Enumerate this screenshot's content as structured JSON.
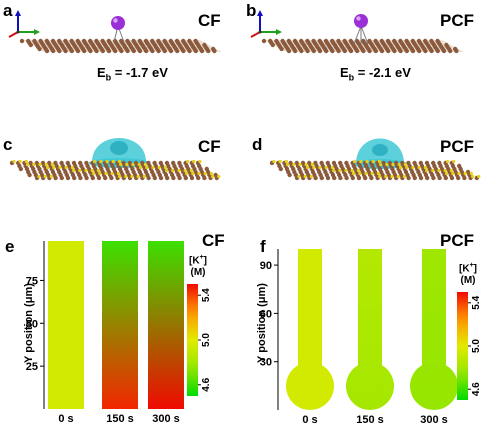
{
  "panels": {
    "a": {
      "letter": "a",
      "tag": "CF",
      "energy_prefix": "E",
      "energy_sub": "b",
      "energy_value": " = -1.7 eV"
    },
    "b": {
      "letter": "b",
      "tag": "PCF",
      "energy_prefix": "E",
      "energy_sub": "b",
      "energy_value": " = -2.1 eV"
    },
    "c": {
      "letter": "c",
      "tag": "CF"
    },
    "d": {
      "letter": "d",
      "tag": "PCF"
    },
    "e": {
      "letter": "e",
      "tag": "CF"
    },
    "f": {
      "letter": "f",
      "tag": "PCF"
    }
  },
  "colors": {
    "carbon": "#8b5a3c",
    "potassium": "#9b30d8",
    "isosurface_cyan": "#3fc9d6",
    "isosurface_yellow": "#e6d21e"
  },
  "chart_data": [
    {
      "type": "heatmap",
      "panel": "e",
      "title": "CF",
      "ylabel": "Y position (μm)",
      "yticks": [
        "25",
        "50",
        "75"
      ],
      "ytick_values": [
        25,
        50,
        75
      ],
      "ylim": [
        0,
        98
      ],
      "categories": [
        "0 s",
        "150 s",
        "300 s"
      ],
      "colorbar": {
        "title_main": "[K",
        "title_sup": "+",
        "title_close": "]",
        "unit": "(M)",
        "ticks": [
          "4.6",
          "5.0",
          "5.4"
        ],
        "range": [
          4.5,
          5.5
        ]
      },
      "series": [
        {
          "name": "0 s",
          "top": 4.95,
          "bottom": 4.95
        },
        {
          "name": "150 s",
          "top": 4.6,
          "bottom": 5.45
        },
        {
          "name": "300 s",
          "top": 4.6,
          "bottom": 5.5
        }
      ]
    },
    {
      "type": "heatmap",
      "panel": "f",
      "title": "PCF",
      "ylabel": "Y position (μm)",
      "yticks": [
        "30",
        "60",
        "90"
      ],
      "ytick_values": [
        30,
        60,
        90
      ],
      "ylim": [
        0,
        100
      ],
      "categories": [
        "0 s",
        "150 s",
        "300 s"
      ],
      "colorbar": {
        "title_main": "[K",
        "title_sup": "+",
        "title_close": "]",
        "unit": "(M)",
        "ticks": [
          "4.6",
          "5.0",
          "5.4"
        ],
        "range": [
          4.5,
          5.5
        ]
      },
      "series": [
        {
          "name": "0 s",
          "top": 4.95,
          "bottom": 4.95
        },
        {
          "name": "150 s",
          "top": 4.85,
          "bottom": 4.8
        },
        {
          "name": "300 s",
          "top": 4.78,
          "bottom": 4.75
        }
      ]
    }
  ]
}
